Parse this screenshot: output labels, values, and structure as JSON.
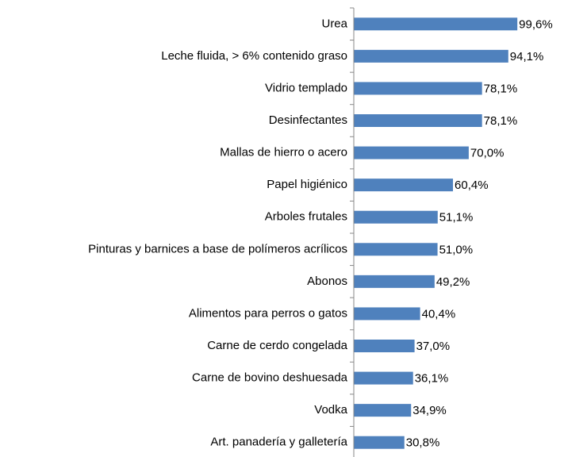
{
  "chart_data": {
    "type": "bar",
    "orientation": "horizontal",
    "categories": [
      "Urea",
      "Leche fluida, > 6% contenido graso",
      "Vidrio templado",
      "Desinfectantes",
      "Mallas de hierro o acero",
      "Papel higiénico",
      "Arboles frutales",
      "Pinturas y barnices a base de polímeros acrílicos",
      "Abonos",
      "Alimentos para perros o gatos",
      "Carne de cerdo congelada",
      "Carne de bovino deshuesada",
      "Vodka",
      "Art. panadería y galletería"
    ],
    "values": [
      99.6,
      94.1,
      78.1,
      78.1,
      70.0,
      60.4,
      51.1,
      51.0,
      49.2,
      40.4,
      37.0,
      36.1,
      34.9,
      30.8
    ],
    "value_labels": [
      "99,6%",
      "94,1%",
      "78,1%",
      "78,1%",
      "70,0%",
      "60,4%",
      "51,1%",
      "51,0%",
      "49,2%",
      "40,4%",
      "37,0%",
      "36,1%",
      "34,9%",
      "30,8%"
    ],
    "color": "#4f81bd",
    "xlim": [
      0,
      100
    ]
  }
}
